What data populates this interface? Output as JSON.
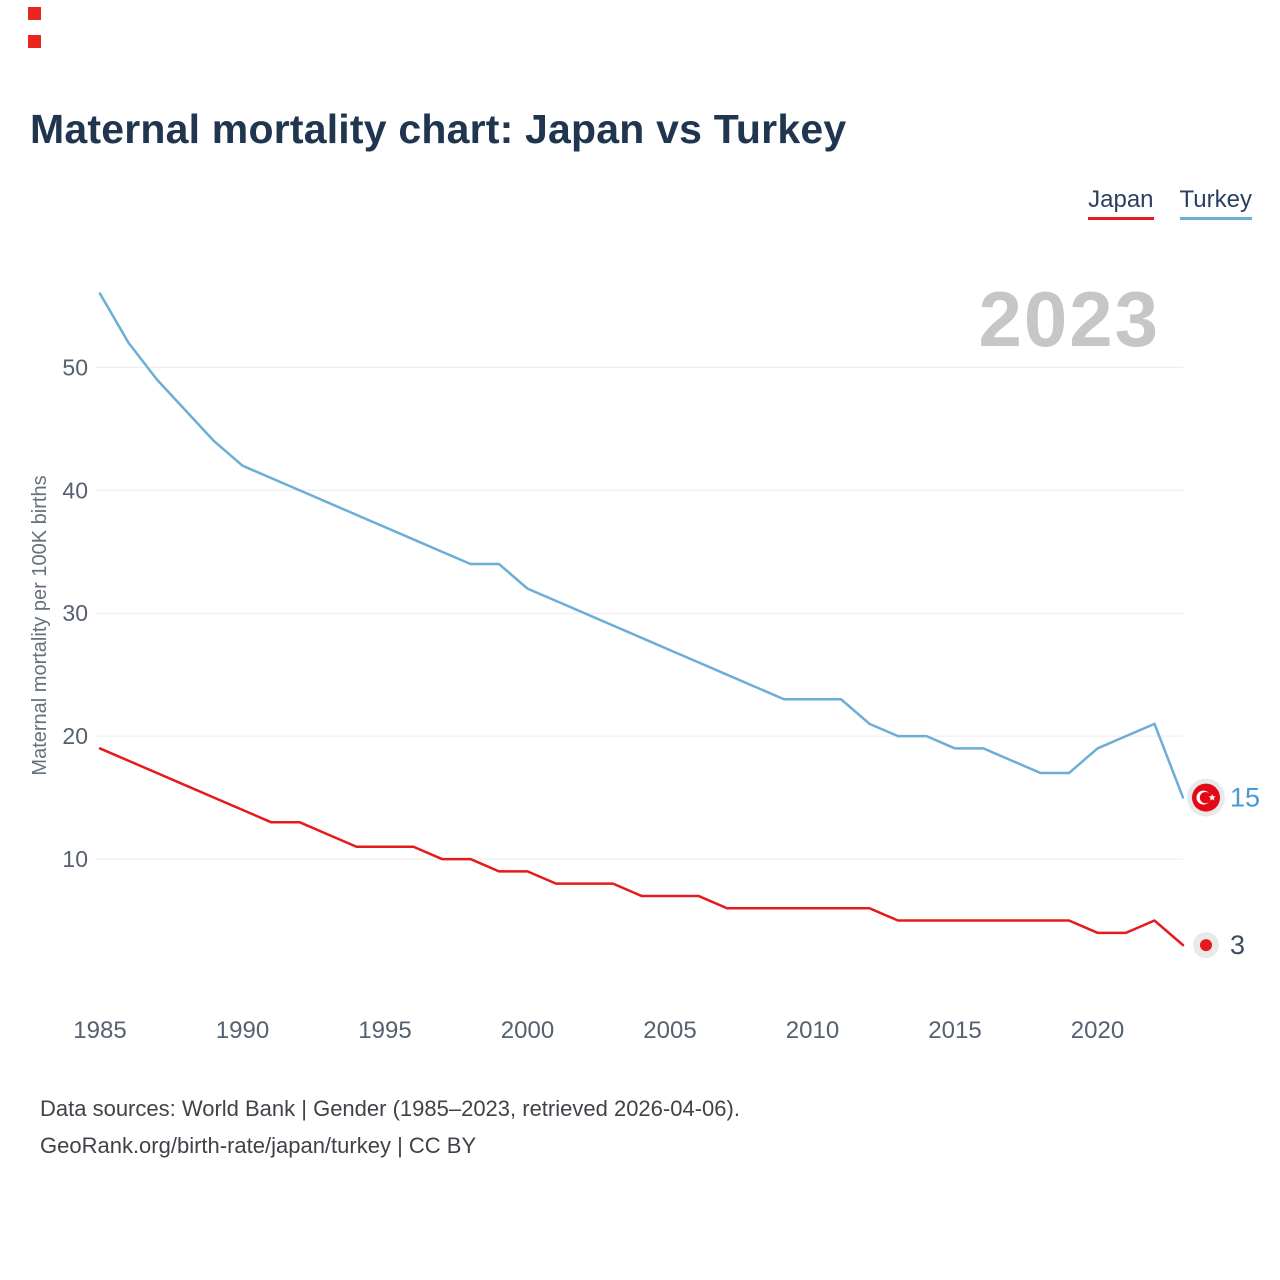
{
  "page": {
    "title": "Maternal mortality chart: Japan vs Turkey",
    "watermark_year": "2023",
    "footer_line1": "Data sources: World Bank | Gender (1985–2023, retrieved 2026-04-06).",
    "footer_line2": "GeoRank.org/birth-rate/japan/turkey | CC BY"
  },
  "legend": {
    "items": [
      {
        "label": "Japan",
        "color": "#e41a1c"
      },
      {
        "label": "Turkey",
        "color": "#6baed6"
      }
    ]
  },
  "end_labels": {
    "turkey": {
      "value": "15",
      "color": "#4a98d4"
    },
    "japan": {
      "value": "3",
      "color": "#3d4d63"
    }
  },
  "chart_data": {
    "type": "line",
    "title": "Maternal mortality chart: Japan vs Turkey",
    "xlabel": "",
    "ylabel": "Maternal mortality per 100K births",
    "x": [
      1985,
      1986,
      1987,
      1988,
      1989,
      1990,
      1991,
      1992,
      1993,
      1994,
      1995,
      1996,
      1997,
      1998,
      1999,
      2000,
      2001,
      2002,
      2003,
      2004,
      2005,
      2006,
      2007,
      2008,
      2009,
      2010,
      2011,
      2012,
      2013,
      2014,
      2015,
      2016,
      2017,
      2018,
      2019,
      2020,
      2021,
      2022,
      2023
    ],
    "series": [
      {
        "name": "Japan",
        "color": "#e41a1c",
        "values": [
          19,
          18,
          17,
          16,
          15,
          14,
          13,
          13,
          12,
          11,
          11,
          11,
          10,
          10,
          9,
          9,
          8,
          8,
          8,
          7,
          7,
          7,
          6,
          6,
          6,
          6,
          6,
          6,
          5,
          5,
          5,
          5,
          5,
          5,
          5,
          4,
          4,
          5,
          3
        ]
      },
      {
        "name": "Turkey",
        "color": "#6baed6",
        "values": [
          56,
          52,
          49,
          46.5,
          44,
          42,
          41,
          40,
          39,
          38,
          37,
          36,
          35,
          34,
          34,
          32,
          31,
          30,
          29,
          28,
          27,
          26,
          25,
          24,
          23,
          23,
          23,
          21,
          20,
          20,
          19,
          19,
          18,
          17,
          17,
          19,
          20,
          21,
          15
        ]
      }
    ],
    "ylim": [
      0,
      58
    ],
    "yticks": [
      10,
      20,
      30,
      40,
      50
    ],
    "xticks": [
      1985,
      1990,
      1995,
      2000,
      2005,
      2010,
      2015,
      2020
    ],
    "grid": true,
    "legend_position": "top-right"
  }
}
